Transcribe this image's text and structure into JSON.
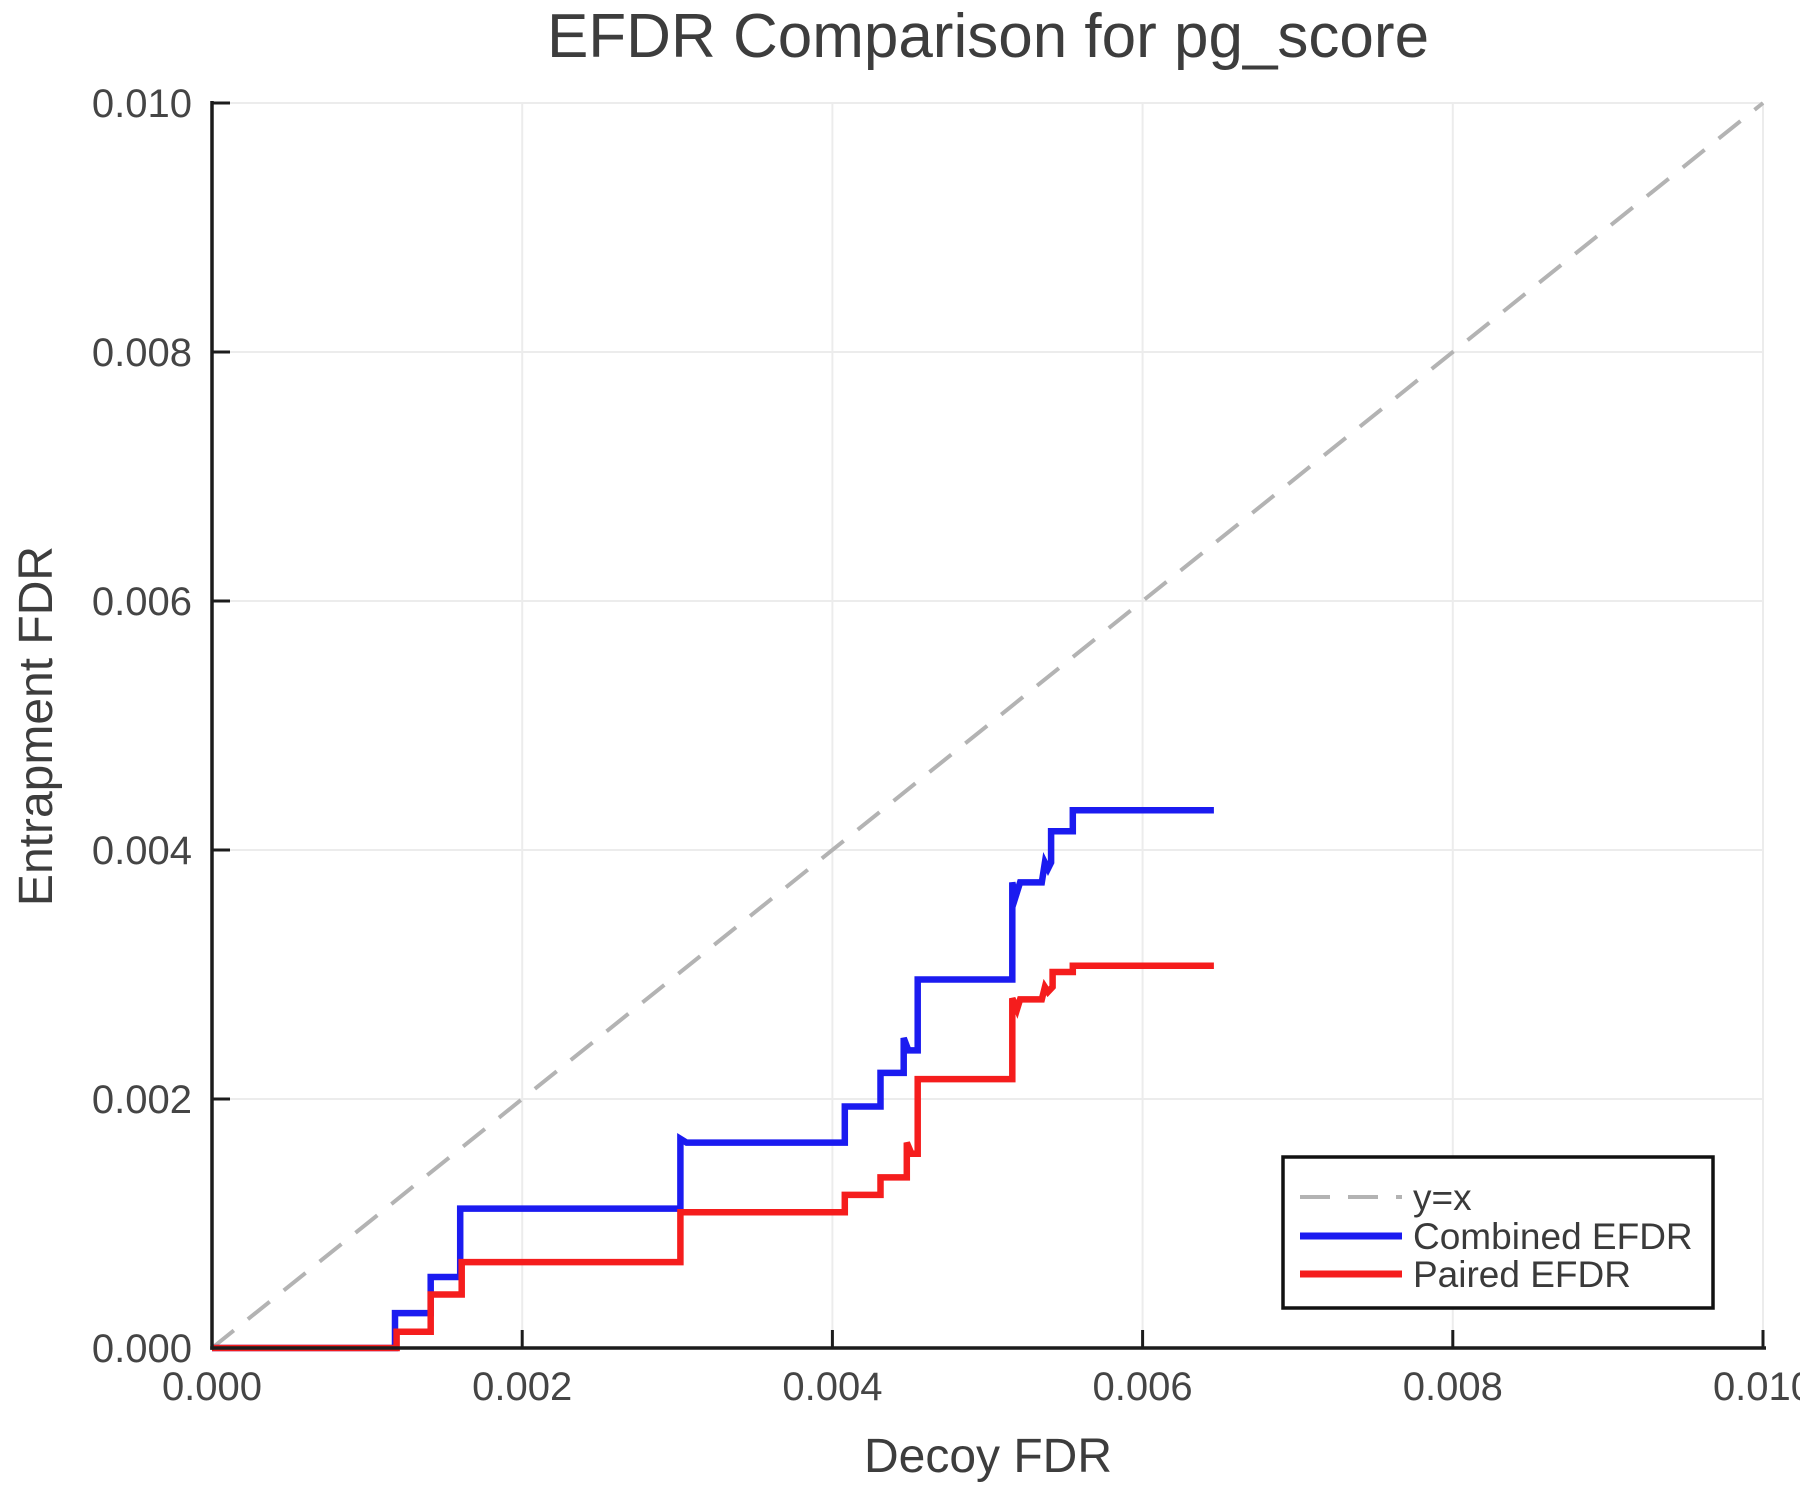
{
  "title": "EFDR Comparison for pg_score",
  "axes": {
    "xlabel": "Decoy FDR",
    "ylabel": "Entrapment FDR",
    "x_tick_labels": [
      "0.000",
      "0.002",
      "0.004",
      "0.006",
      "0.008",
      "0.010"
    ],
    "y_tick_labels": [
      "0.000",
      "0.002",
      "0.004",
      "0.006",
      "0.008",
      "0.010"
    ]
  },
  "legend": {
    "position": "lower right",
    "entries": [
      {
        "label": "y=x",
        "color": "#b3b3b3",
        "dashed": true
      },
      {
        "label": "Combined EFDR",
        "color": "#1b1bf0",
        "dashed": false
      },
      {
        "label": "Paired EFDR",
        "color": "#f51d1d",
        "dashed": false
      }
    ]
  },
  "chart_data": {
    "type": "line",
    "title": "EFDR Comparison for pg_score",
    "xlabel": "Decoy FDR",
    "ylabel": "Entrapment FDR",
    "xlim": [
      0.0,
      0.01
    ],
    "ylim": [
      0.0,
      0.01
    ],
    "grid": true,
    "x_ticks": [
      0.0,
      0.002,
      0.004,
      0.006,
      0.008,
      0.01
    ],
    "y_ticks": [
      0.0,
      0.002,
      0.004,
      0.006,
      0.008,
      0.01
    ],
    "legend_position": "lower right",
    "series": [
      {
        "name": "y=x",
        "color": "#b3b3b3",
        "style": "dashed",
        "width": 4,
        "points": [
          [
            0.0,
            0.0
          ],
          [
            0.01,
            0.01
          ]
        ]
      },
      {
        "name": "Combined EFDR",
        "color": "#1b1bf0",
        "style": "solid",
        "width": 6.5,
        "points": [
          [
            0.0,
            0.0
          ],
          [
            0.00118,
            0.0
          ],
          [
            0.00118,
            0.00028
          ],
          [
            0.00141,
            0.00028
          ],
          [
            0.00141,
            0.00057
          ],
          [
            0.0016,
            0.00057
          ],
          [
            0.0016,
            0.00112
          ],
          [
            0.00302,
            0.00112
          ],
          [
            0.00302,
            0.00168
          ],
          [
            0.00306,
            0.00165
          ],
          [
            0.00408,
            0.00165
          ],
          [
            0.00408,
            0.00194
          ],
          [
            0.00431,
            0.00194
          ],
          [
            0.00431,
            0.00221
          ],
          [
            0.00446,
            0.00221
          ],
          [
            0.00446,
            0.00249
          ],
          [
            0.00449,
            0.00239
          ],
          [
            0.00455,
            0.00239
          ],
          [
            0.00455,
            0.00296
          ],
          [
            0.00516,
            0.00296
          ],
          [
            0.00516,
            0.00374
          ],
          [
            0.00518,
            0.00362
          ],
          [
            0.00521,
            0.00374
          ],
          [
            0.00535,
            0.00374
          ],
          [
            0.00537,
            0.0039
          ],
          [
            0.00539,
            0.00385
          ],
          [
            0.00541,
            0.0039
          ],
          [
            0.00541,
            0.00415
          ],
          [
            0.00555,
            0.00415
          ],
          [
            0.00555,
            0.00432
          ],
          [
            0.00646,
            0.00432
          ]
        ]
      },
      {
        "name": "Paired EFDR",
        "color": "#f51d1d",
        "style": "solid",
        "width": 6.5,
        "points": [
          [
            0.0,
            0.0
          ],
          [
            0.00119,
            0.0
          ],
          [
            0.00119,
            0.00013
          ],
          [
            0.00141,
            0.00013
          ],
          [
            0.00141,
            0.00043
          ],
          [
            0.00161,
            0.00043
          ],
          [
            0.00161,
            0.00069
          ],
          [
            0.00302,
            0.00069
          ],
          [
            0.00302,
            0.00109
          ],
          [
            0.00408,
            0.00109
          ],
          [
            0.00408,
            0.00123
          ],
          [
            0.00431,
            0.00123
          ],
          [
            0.00431,
            0.00137
          ],
          [
            0.00448,
            0.00137
          ],
          [
            0.00448,
            0.00165
          ],
          [
            0.00451,
            0.00156
          ],
          [
            0.00455,
            0.00156
          ],
          [
            0.00455,
            0.00216
          ],
          [
            0.00516,
            0.00216
          ],
          [
            0.00516,
            0.00281
          ],
          [
            0.00519,
            0.00272
          ],
          [
            0.00521,
            0.0028
          ],
          [
            0.00535,
            0.0028
          ],
          [
            0.00537,
            0.0029
          ],
          [
            0.00539,
            0.00286
          ],
          [
            0.00542,
            0.0029
          ],
          [
            0.00542,
            0.00302
          ],
          [
            0.00555,
            0.00302
          ],
          [
            0.00555,
            0.00307
          ],
          [
            0.00646,
            0.00307
          ]
        ]
      }
    ]
  }
}
